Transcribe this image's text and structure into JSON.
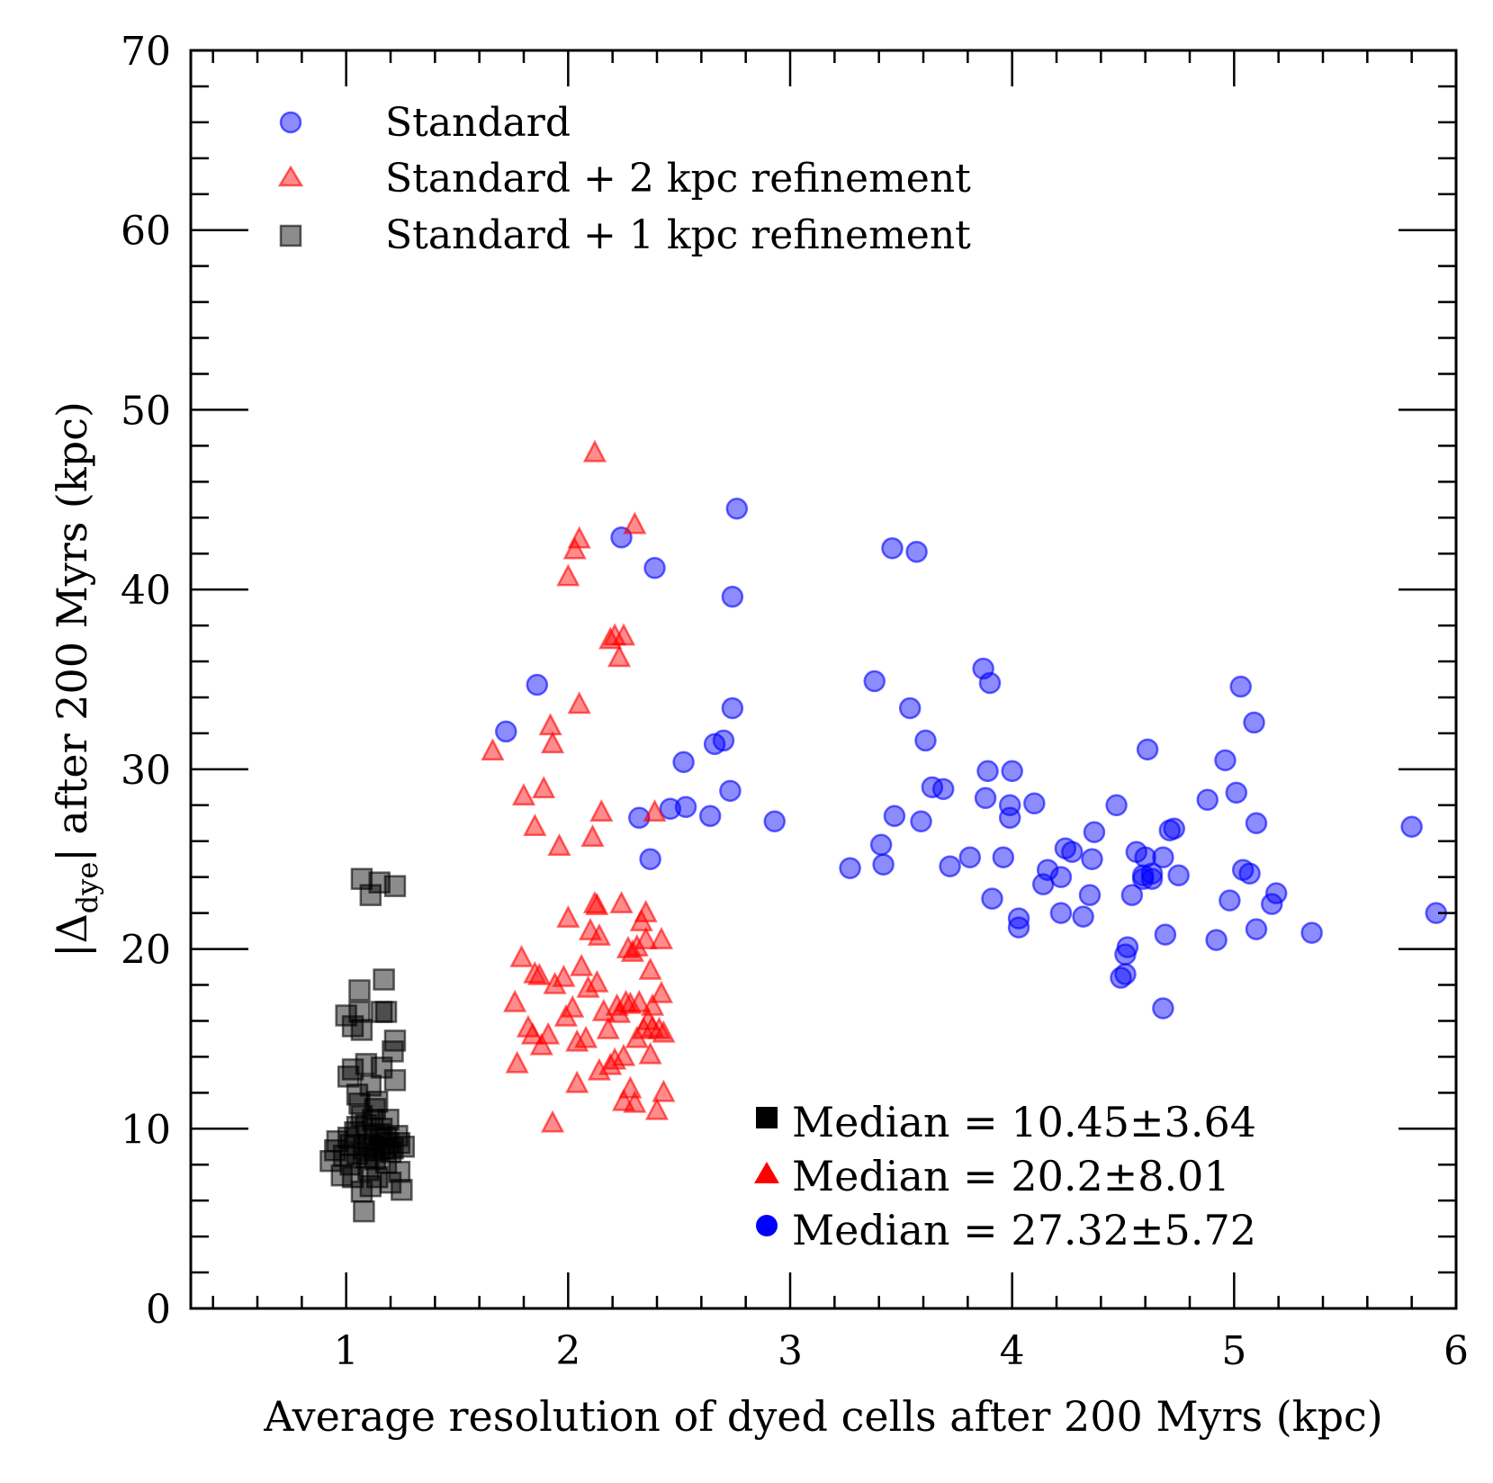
{
  "chart_data": {
    "type": "scatter",
    "title": "",
    "xlabel": "Average resolution of dyed cells after 200 Myrs (kpc)",
    "ylabel": "|Δdye| after 200 Myrs (kpc)",
    "ylabel_parts": {
      "pre": "|Δ",
      "sub": "dye",
      "post": "| after 200 Myrs (kpc)"
    },
    "xlim": [
      0.3,
      6.0
    ],
    "ylim": [
      0,
      70
    ],
    "xticks": [
      1,
      2,
      3,
      4,
      5,
      6
    ],
    "xtick_labels": [
      "1",
      "2",
      "3",
      "4",
      "5",
      "6"
    ],
    "yticks": [
      0,
      10,
      20,
      30,
      40,
      50,
      60,
      70
    ],
    "ytick_labels": [
      "0",
      "10",
      "20",
      "30",
      "40",
      "50",
      "60",
      "70"
    ],
    "grid": false,
    "legend": {
      "location": "top-left",
      "entries": [
        {
          "label": "Standard",
          "series": 0
        },
        {
          "label": "Standard + 2 kpc refinement",
          "series": 1
        },
        {
          "label": "Standard + 1 kpc refinement",
          "series": 2
        }
      ]
    },
    "annotations": [
      {
        "text": "Median = 10.45±3.64",
        "series": 2
      },
      {
        "text": "Median = 20.2±8.01",
        "series": 1
      },
      {
        "text": "Median = 27.32±5.72",
        "series": 0
      }
    ],
    "series": [
      {
        "name": "Standard",
        "marker": "circle",
        "color": "#0000ff",
        "points": [
          [
            1.72,
            32.1
          ],
          [
            1.86,
            34.7
          ],
          [
            2.24,
            42.9
          ],
          [
            2.39,
            41.2
          ],
          [
            2.32,
            27.3
          ],
          [
            2.37,
            25.0
          ],
          [
            2.46,
            27.8
          ],
          [
            2.52,
            30.4
          ],
          [
            2.53,
            27.9
          ],
          [
            2.64,
            27.4
          ],
          [
            2.66,
            31.4
          ],
          [
            2.7,
            31.6
          ],
          [
            2.73,
            28.8
          ],
          [
            2.74,
            39.6
          ],
          [
            2.74,
            33.4
          ],
          [
            2.76,
            44.5
          ],
          [
            2.93,
            27.1
          ],
          [
            3.27,
            24.5
          ],
          [
            3.38,
            34.9
          ],
          [
            3.41,
            25.8
          ],
          [
            3.42,
            24.7
          ],
          [
            3.46,
            42.3
          ],
          [
            3.47,
            27.4
          ],
          [
            3.54,
            33.4
          ],
          [
            3.57,
            42.1
          ],
          [
            3.59,
            27.1
          ],
          [
            3.61,
            31.6
          ],
          [
            3.64,
            29.0
          ],
          [
            3.69,
            28.9
          ],
          [
            3.72,
            24.6
          ],
          [
            3.81,
            25.1
          ],
          [
            3.87,
            35.6
          ],
          [
            3.88,
            28.4
          ],
          [
            3.89,
            29.9
          ],
          [
            3.9,
            34.8
          ],
          [
            3.91,
            22.8
          ],
          [
            3.96,
            25.1
          ],
          [
            3.99,
            27.3
          ],
          [
            3.99,
            28.0
          ],
          [
            4.0,
            29.9
          ],
          [
            4.03,
            21.2
          ],
          [
            4.03,
            21.7
          ],
          [
            4.1,
            28.1
          ],
          [
            4.14,
            23.6
          ],
          [
            4.16,
            24.4
          ],
          [
            4.22,
            24.0
          ],
          [
            4.22,
            22.0
          ],
          [
            4.24,
            25.6
          ],
          [
            4.27,
            25.4
          ],
          [
            4.32,
            21.8
          ],
          [
            4.35,
            23.0
          ],
          [
            4.36,
            25.0
          ],
          [
            4.37,
            26.5
          ],
          [
            4.47,
            28.0
          ],
          [
            4.49,
            18.4
          ],
          [
            4.51,
            18.6
          ],
          [
            4.51,
            19.7
          ],
          [
            4.52,
            20.1
          ],
          [
            4.54,
            23.0
          ],
          [
            4.56,
            25.4
          ],
          [
            4.59,
            24.1
          ],
          [
            4.59,
            23.9
          ],
          [
            4.6,
            25.1
          ],
          [
            4.61,
            31.1
          ],
          [
            4.63,
            23.9
          ],
          [
            4.63,
            24.2
          ],
          [
            4.68,
            16.7
          ],
          [
            4.68,
            25.1
          ],
          [
            4.69,
            20.8
          ],
          [
            4.71,
            26.6
          ],
          [
            4.73,
            26.7
          ],
          [
            4.75,
            24.1
          ],
          [
            4.88,
            28.3
          ],
          [
            4.92,
            20.5
          ],
          [
            4.96,
            30.5
          ],
          [
            4.98,
            22.7
          ],
          [
            5.01,
            28.7
          ],
          [
            5.03,
            34.6
          ],
          [
            5.04,
            24.4
          ],
          [
            5.07,
            24.2
          ],
          [
            5.09,
            32.6
          ],
          [
            5.1,
            27.0
          ],
          [
            5.1,
            21.1
          ],
          [
            5.17,
            22.5
          ],
          [
            5.19,
            23.1
          ],
          [
            5.35,
            20.9
          ],
          [
            5.8,
            26.8
          ],
          [
            5.91,
            22.0
          ]
        ]
      },
      {
        "name": "Standard + 2 kpc refinement",
        "marker": "triangle",
        "color": "#ff0000",
        "points": [
          [
            1.66,
            31.0
          ],
          [
            1.76,
            17.0
          ],
          [
            1.77,
            13.6
          ],
          [
            1.79,
            19.5
          ],
          [
            1.8,
            28.5
          ],
          [
            1.82,
            15.6
          ],
          [
            1.84,
            15.2
          ],
          [
            1.85,
            18.6
          ],
          [
            1.85,
            26.8
          ],
          [
            1.87,
            18.5
          ],
          [
            1.88,
            14.6
          ],
          [
            1.89,
            28.9
          ],
          [
            1.91,
            15.2
          ],
          [
            1.92,
            32.4
          ],
          [
            1.93,
            10.3
          ],
          [
            1.93,
            31.4
          ],
          [
            1.94,
            18.0
          ],
          [
            1.96,
            25.7
          ],
          [
            1.98,
            18.4
          ],
          [
            1.99,
            16.2
          ],
          [
            2.0,
            21.7
          ],
          [
            2.0,
            40.7
          ],
          [
            2.02,
            16.7
          ],
          [
            2.03,
            42.2
          ],
          [
            2.04,
            14.8
          ],
          [
            2.04,
            12.5
          ],
          [
            2.05,
            33.6
          ],
          [
            2.05,
            42.8
          ],
          [
            2.06,
            19.0
          ],
          [
            2.08,
            15.0
          ],
          [
            2.09,
            17.8
          ],
          [
            2.1,
            21.0
          ],
          [
            2.11,
            26.2
          ],
          [
            2.12,
            22.5
          ],
          [
            2.12,
            47.6
          ],
          [
            2.13,
            18.1
          ],
          [
            2.13,
            22.4
          ],
          [
            2.14,
            20.7
          ],
          [
            2.14,
            13.2
          ],
          [
            2.15,
            27.6
          ],
          [
            2.16,
            16.5
          ],
          [
            2.18,
            15.5
          ],
          [
            2.19,
            37.2
          ],
          [
            2.19,
            13.5
          ],
          [
            2.21,
            13.8
          ],
          [
            2.21,
            37.4
          ],
          [
            2.22,
            16.8
          ],
          [
            2.23,
            16.4
          ],
          [
            2.23,
            36.2
          ],
          [
            2.24,
            22.5
          ],
          [
            2.25,
            37.4
          ],
          [
            2.25,
            11.5
          ],
          [
            2.25,
            14.0
          ],
          [
            2.26,
            17.0
          ],
          [
            2.27,
            20.0
          ],
          [
            2.28,
            16.9
          ],
          [
            2.28,
            12.2
          ],
          [
            2.29,
            19.8
          ],
          [
            2.3,
            11.4
          ],
          [
            2.3,
            43.6
          ],
          [
            2.31,
            15.0
          ],
          [
            2.31,
            20.1
          ],
          [
            2.32,
            17.0
          ],
          [
            2.33,
            21.5
          ],
          [
            2.34,
            15.5
          ],
          [
            2.35,
            20.5
          ],
          [
            2.35,
            22.0
          ],
          [
            2.36,
            16.0
          ],
          [
            2.37,
            18.8
          ],
          [
            2.37,
            14.1
          ],
          [
            2.38,
            15.6
          ],
          [
            2.38,
            16.8
          ],
          [
            2.39,
            27.6
          ],
          [
            2.4,
            11.0
          ],
          [
            2.41,
            15.5
          ],
          [
            2.42,
            17.5
          ],
          [
            2.42,
            20.5
          ],
          [
            2.43,
            12.0
          ],
          [
            2.43,
            15.3
          ]
        ]
      },
      {
        "name": "Standard + 1 kpc refinement",
        "marker": "square",
        "color": "#000000",
        "points": [
          [
            0.93,
            8.2
          ],
          [
            0.95,
            8.8
          ],
          [
            0.96,
            9.3
          ],
          [
            0.98,
            7.4
          ],
          [
            0.99,
            8.5
          ],
          [
            1.0,
            16.3
          ],
          [
            1.01,
            12.9
          ],
          [
            1.01,
            9.5
          ],
          [
            1.02,
            8.0
          ],
          [
            1.03,
            15.7
          ],
          [
            1.03,
            13.3
          ],
          [
            1.03,
            7.3
          ],
          [
            1.04,
            9.8
          ],
          [
            1.05,
            11.9
          ],
          [
            1.05,
            8.6
          ],
          [
            1.06,
            17.7
          ],
          [
            1.06,
            11.4
          ],
          [
            1.06,
            16.5
          ],
          [
            1.07,
            6.5
          ],
          [
            1.07,
            23.9
          ],
          [
            1.07,
            15.5
          ],
          [
            1.07,
            10.7
          ],
          [
            1.08,
            5.4
          ],
          [
            1.08,
            8.9
          ],
          [
            1.09,
            13.6
          ],
          [
            1.09,
            10.2
          ],
          [
            1.1,
            7.7
          ],
          [
            1.1,
            9.1
          ],
          [
            1.11,
            23.0
          ],
          [
            1.11,
            12.4
          ],
          [
            1.11,
            6.8
          ],
          [
            1.12,
            10.5
          ],
          [
            1.13,
            9.6
          ],
          [
            1.13,
            8.3
          ],
          [
            1.14,
            11.5
          ],
          [
            1.14,
            7.3
          ],
          [
            1.15,
            9.7
          ],
          [
            1.15,
            23.7
          ],
          [
            1.16,
            16.5
          ],
          [
            1.16,
            10.0
          ],
          [
            1.16,
            13.4
          ],
          [
            1.17,
            8.9
          ],
          [
            1.17,
            18.3
          ],
          [
            1.18,
            8.1
          ],
          [
            1.18,
            16.5
          ],
          [
            1.19,
            9.2
          ],
          [
            1.19,
            10.5
          ],
          [
            1.2,
            7.0
          ],
          [
            1.2,
            8.7
          ],
          [
            1.21,
            14.3
          ],
          [
            1.22,
            23.5
          ],
          [
            1.22,
            14.9
          ],
          [
            1.22,
            12.7
          ],
          [
            1.23,
            9.6
          ],
          [
            1.24,
            7.6
          ],
          [
            1.24,
            9.2
          ],
          [
            1.25,
            6.6
          ],
          [
            1.26,
            9.0
          ],
          [
            1.02,
            9.1
          ],
          [
            1.05,
            10.1
          ],
          [
            1.09,
            8.4
          ],
          [
            1.12,
            9.0
          ],
          [
            1.15,
            8.8
          ],
          [
            1.18,
            9.5
          ],
          [
            1.21,
            8.9
          ],
          [
            1.13,
            11.1
          ]
        ]
      }
    ]
  }
}
